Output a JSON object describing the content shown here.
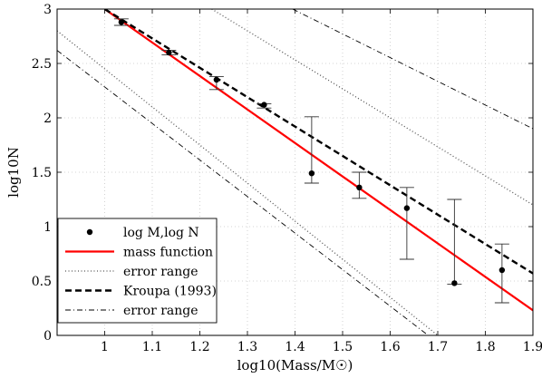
{
  "chart_data": {
    "type": "scatter",
    "xlabel": "log10(Mass/M☉)",
    "ylabel": "log10N",
    "xlim": [
      0.9,
      1.9
    ],
    "ylim": [
      0,
      3
    ],
    "x_ticks": [
      "1",
      "1.1",
      "1.2",
      "1.3",
      "1.4",
      "1.5",
      "1.6",
      "1.7",
      "1.8",
      "1.9"
    ],
    "y_ticks": [
      "0",
      "0.5",
      "1",
      "1.5",
      "2",
      "2.5",
      "3"
    ],
    "x_tick_values": [
      1.0,
      1.1,
      1.2,
      1.3,
      1.4,
      1.5,
      1.6,
      1.7,
      1.8,
      1.9
    ],
    "y_tick_values": [
      0,
      0.5,
      1,
      1.5,
      2,
      2.5,
      3
    ],
    "grid": true,
    "legend_position": "bottom-left",
    "series": [
      {
        "name": "log M,log N",
        "style": "points-with-errorbars",
        "color": "#000000",
        "points": [
          {
            "x": 1.035,
            "y": 2.88,
            "ylo": 2.85,
            "yhi": 2.91
          },
          {
            "x": 1.135,
            "y": 2.6,
            "ylo": 2.58,
            "yhi": 2.62
          },
          {
            "x": 1.235,
            "y": 2.35,
            "ylo": 2.26,
            "yhi": 2.38
          },
          {
            "x": 1.335,
            "y": 2.12,
            "ylo": 2.09,
            "yhi": 2.13
          },
          {
            "x": 1.435,
            "y": 1.49,
            "ylo": 1.4,
            "yhi": 2.01
          },
          {
            "x": 1.535,
            "y": 1.36,
            "ylo": 1.26,
            "yhi": 1.5
          },
          {
            "x": 1.635,
            "y": 1.17,
            "ylo": 0.7,
            "yhi": 1.36
          },
          {
            "x": 1.735,
            "y": 0.48,
            "ylo": 0.47,
            "yhi": 1.25
          },
          {
            "x": 1.835,
            "y": 0.6,
            "ylo": 0.3,
            "yhi": 0.84
          }
        ]
      },
      {
        "name": "mass function",
        "style": "solid",
        "color": "#ff0000",
        "points": [
          {
            "x": 1.0,
            "y": 3.0
          },
          {
            "x": 1.9,
            "y": 0.23
          }
        ]
      },
      {
        "name": "error range",
        "style": "dotted",
        "color": "#555555",
        "lines": [
          [
            {
              "x": 0.9,
              "y": 2.8
            },
            {
              "x": 1.7,
              "y": 0.0
            }
          ],
          [
            {
              "x": 1.225,
              "y": 3.0
            },
            {
              "x": 1.9,
              "y": 1.2
            }
          ]
        ]
      },
      {
        "name": "Kroupa (1993)",
        "style": "dashed",
        "color": "#000000",
        "points": [
          {
            "x": 1.0,
            "y": 3.0
          },
          {
            "x": 1.9,
            "y": 0.57
          }
        ]
      },
      {
        "name": "error range",
        "style": "dashdot",
        "color": "#000000",
        "lines": [
          [
            {
              "x": 0.9,
              "y": 2.62
            },
            {
              "x": 1.68,
              "y": 0.0
            }
          ],
          [
            {
              "x": 1.395,
              "y": 3.0
            },
            {
              "x": 1.9,
              "y": 1.9
            }
          ]
        ]
      }
    ]
  }
}
